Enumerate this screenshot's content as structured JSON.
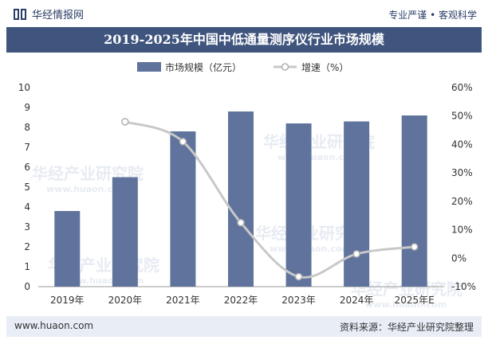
{
  "header": {
    "brand": "华经情报网",
    "slogan": "专业严谨 • 客观科学"
  },
  "title": "2019-2025年中国中低通量测序仪行业市场规模",
  "footer": {
    "url": "www.huaon.com",
    "source": "资料来源：华经产业研究院整理"
  },
  "watermark": {
    "text": "华经产业研究院",
    "url": "www.huaon.com"
  },
  "colors": {
    "bar": "#5f739c",
    "line": "#c8c8c8",
    "title_bg": "#40557e",
    "footer_bg": "#e8edf6"
  },
  "chart_data": {
    "type": "bar",
    "categories": [
      "2019年",
      "2020年",
      "2021年",
      "2022年",
      "2023年",
      "2024年",
      "2025年E"
    ],
    "series": [
      {
        "name": "市场规模（亿元）",
        "type": "bar",
        "axis": "left",
        "values": [
          3.8,
          5.5,
          7.8,
          8.8,
          8.2,
          8.3,
          8.6
        ]
      },
      {
        "name": "增速（%）",
        "type": "line",
        "axis": "right",
        "values": [
          null,
          48.0,
          41.0,
          12.5,
          -6.5,
          1.5,
          4.0
        ]
      }
    ],
    "y_left": {
      "min": 0,
      "max": 10,
      "ticks": [
        "0",
        "1",
        "2",
        "3",
        "4",
        "5",
        "6",
        "7",
        "8",
        "9",
        "10"
      ]
    },
    "y_right": {
      "min": -10,
      "max": 60,
      "ticks": [
        "-10%",
        "0%",
        "10%",
        "20%",
        "30%",
        "40%",
        "50%",
        "60%"
      ]
    },
    "legend_position": "top",
    "grid": false
  }
}
